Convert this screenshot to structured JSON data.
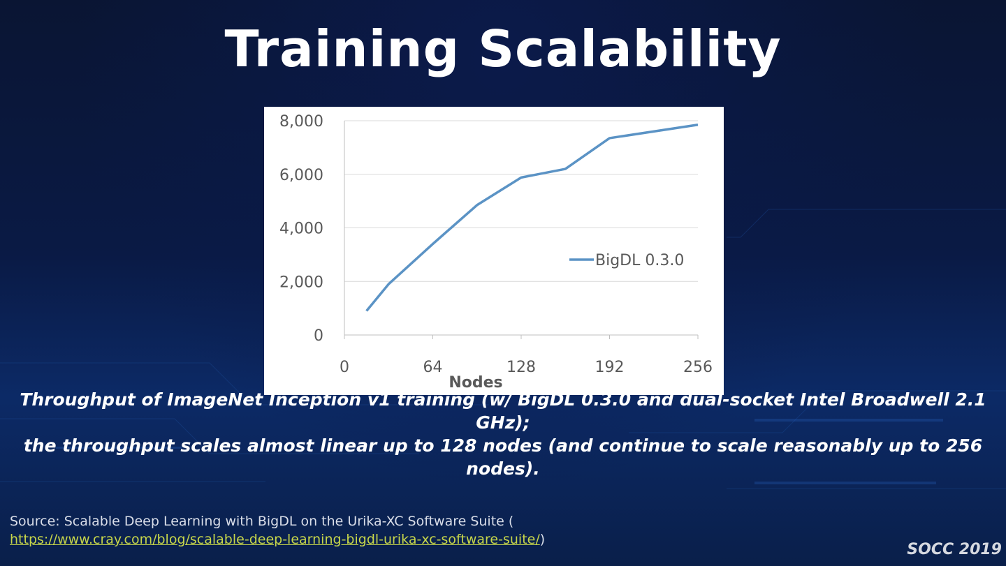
{
  "slide": {
    "title": "Training Scalability",
    "caption_line1": "Throughput of ImageNet Inception v1 training (w/ BigDL 0.3.0 and dual-socket Intel Broadwell 2.1 GHz);",
    "caption_line2": "the throughput scales almost linear up to 128 nodes (and continue to scale reasonably up to 256 nodes).",
    "source_prefix": "Source: Scalable Deep Learning with BigDL on the Urika-XC Software Suite (",
    "source_link": "https://www.cray.com/blog/scalable-deep-learning-bigdl-urika-xc-software-suite/",
    "source_suffix": ")",
    "footer": "SOCC 2019"
  },
  "colors": {
    "background": "#08122e",
    "line": "#5b93c5",
    "link": "#c7d64a"
  },
  "chart_data": {
    "type": "line",
    "xlabel": "Nodes",
    "ylabel": "",
    "x_ticks": [
      "0",
      "64",
      "128",
      "192",
      "256"
    ],
    "y_ticks": [
      "0",
      "2,000",
      "4,000",
      "6,000",
      "8,000"
    ],
    "xlim": [
      0,
      256
    ],
    "ylim": [
      0,
      8000
    ],
    "grid": true,
    "legend": "right",
    "series": [
      {
        "name": "BigDL 0.3.0",
        "x": [
          16,
          32,
          64,
          96,
          128,
          160,
          192,
          256
        ],
        "y": [
          900,
          1900,
          3400,
          4850,
          5880,
          6200,
          7350,
          7850
        ]
      }
    ]
  }
}
